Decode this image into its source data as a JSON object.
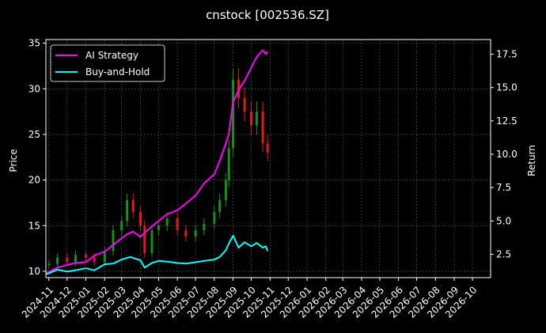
{
  "colors": {
    "background": "#000000",
    "axes": "#ffffff",
    "grid": "#555555",
    "up_candle": "#1a8f1a",
    "down_candle": "#e31a1a",
    "ai_strategy": "#ff00ff",
    "buy_and_hold": "#00ffff"
  },
  "chart_data": {
    "type": "line",
    "title": "cnstock [002536.SZ]",
    "xlabel": "",
    "ylabel": "Price",
    "y2label": "Return",
    "grid": true,
    "legend_position": "top-left",
    "x_range": [
      "2024-10-27",
      "2026-10-31"
    ],
    "ylim": [
      9.3,
      35.4
    ],
    "y2lim": [
      0.75,
      18.6
    ],
    "x_ticks": [
      "2024-11",
      "2024-12",
      "2025-01",
      "2025-02",
      "2025-03",
      "2025-04",
      "2025-05",
      "2025-06",
      "2025-07",
      "2025-08",
      "2025-09",
      "2025-10",
      "2025-11",
      "2025-12",
      "2026-01",
      "2026-02",
      "2026-03",
      "2026-04",
      "2026-05",
      "2026-06",
      "2026-07",
      "2026-08",
      "2026-09",
      "2026-10"
    ],
    "y_ticks": [
      "10",
      "15",
      "20",
      "25",
      "30",
      "35"
    ],
    "y2_ticks": [
      "2.5",
      "5.0",
      "7.5",
      "10.0",
      "12.5",
      "15.0",
      "17.5"
    ],
    "price_series": {
      "name": "",
      "dates": [
        "2024-11-01",
        "2024-11-15",
        "2024-12-01",
        "2024-12-15",
        "2025-01-01",
        "2025-01-15",
        "2025-02-01",
        "2025-02-15",
        "2025-03-01",
        "2025-03-10",
        "2025-03-20",
        "2025-04-01",
        "2025-04-08",
        "2025-04-20",
        "2025-05-01",
        "2025-05-15",
        "2025-06-01",
        "2025-06-15",
        "2025-07-01",
        "2025-07-15",
        "2025-08-01",
        "2025-08-10",
        "2025-08-20",
        "2025-08-25",
        "2025-09-01",
        "2025-09-10",
        "2025-09-20",
        "2025-10-01",
        "2025-10-10",
        "2025-10-20",
        "2025-10-28"
      ],
      "values": [
        10.8,
        11.5,
        11.0,
        11.8,
        11.5,
        11.0,
        12.2,
        14.5,
        15.5,
        17.8,
        16.5,
        15.0,
        12.0,
        14.5,
        15.0,
        15.8,
        14.5,
        13.8,
        14.5,
        15.2,
        16.5,
        17.8,
        20.0,
        23.5,
        31.0,
        29.0,
        27.5,
        26.0,
        27.5,
        24.0,
        23.0
      ]
    },
    "series": [
      {
        "name": "AI Strategy",
        "dates": [
          "2024-10-28",
          "2024-11-15",
          "2024-12-01",
          "2024-12-15",
          "2025-01-01",
          "2025-01-15",
          "2025-02-01",
          "2025-02-15",
          "2025-03-01",
          "2025-03-10",
          "2025-03-20",
          "2025-04-01",
          "2025-04-15",
          "2025-05-01",
          "2025-05-15",
          "2025-06-01",
          "2025-06-15",
          "2025-07-01",
          "2025-07-15",
          "2025-08-01",
          "2025-08-10",
          "2025-08-20",
          "2025-08-25",
          "2025-09-01",
          "2025-09-10",
          "2025-09-20",
          "2025-10-01",
          "2025-10-10",
          "2025-10-20",
          "2025-10-25",
          "2025-10-28"
        ],
        "values": [
          1.1,
          1.5,
          1.7,
          1.85,
          1.9,
          2.4,
          2.7,
          3.2,
          3.7,
          4.0,
          4.2,
          3.8,
          4.4,
          5.0,
          5.5,
          5.8,
          6.3,
          6.9,
          7.8,
          8.5,
          9.5,
          10.8,
          11.5,
          13.9,
          14.8,
          15.5,
          16.5,
          17.3,
          17.8,
          17.5,
          17.7
        ]
      },
      {
        "name": "Buy-and-Hold",
        "dates": [
          "2024-10-28",
          "2024-11-15",
          "2024-12-01",
          "2024-12-15",
          "2025-01-01",
          "2025-01-15",
          "2025-02-01",
          "2025-02-15",
          "2025-03-01",
          "2025-03-15",
          "2025-04-01",
          "2025-04-08",
          "2025-04-20",
          "2025-05-01",
          "2025-05-15",
          "2025-06-01",
          "2025-06-15",
          "2025-07-01",
          "2025-07-15",
          "2025-08-01",
          "2025-08-10",
          "2025-08-20",
          "2025-08-25",
          "2025-09-01",
          "2025-09-10",
          "2025-09-20",
          "2025-10-01",
          "2025-10-10",
          "2025-10-20",
          "2025-10-25",
          "2025-10-28"
        ],
        "values": [
          1.0,
          1.35,
          1.2,
          1.3,
          1.45,
          1.3,
          1.75,
          1.8,
          2.1,
          2.3,
          2.05,
          1.5,
          1.85,
          2.0,
          1.95,
          1.85,
          1.8,
          1.9,
          2.0,
          2.1,
          2.3,
          2.8,
          3.3,
          3.9,
          3.0,
          3.4,
          3.1,
          3.35,
          3.0,
          3.1,
          2.75
        ]
      }
    ]
  }
}
